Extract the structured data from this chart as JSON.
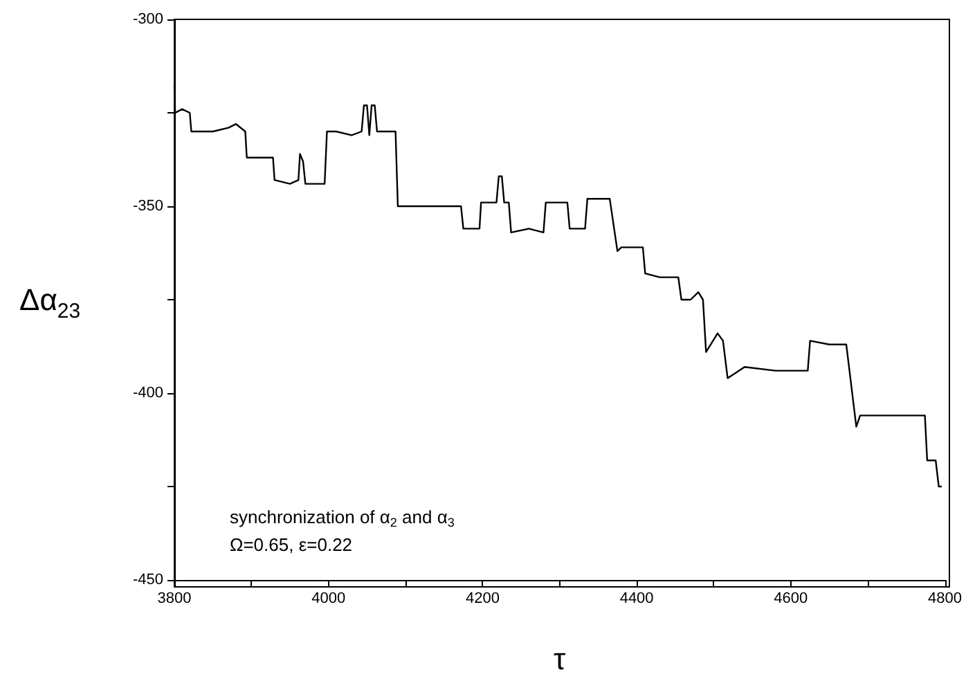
{
  "chart_data": {
    "type": "line",
    "xlabel": "τ",
    "ylabel": "Δα$_{23}$",
    "annotations": [
      "synchronization of α$_{2}$ and α$_{3}$",
      "Ω=0.65, ε=0.22"
    ],
    "xlim": [
      3800,
      4800
    ],
    "xticks": [
      3800,
      4000,
      4200,
      4400,
      4600,
      4800
    ],
    "ylim": [
      -450,
      -300
    ],
    "yticks": [
      -450,
      -400,
      -350,
      -300
    ],
    "grid": false,
    "marker": "none",
    "line_style": "solid",
    "series": [
      {
        "color": "#000000",
        "x": [
          3800,
          3801,
          3810,
          3820,
          3822,
          3850,
          3870,
          3880,
          3892,
          3894,
          3910,
          3928,
          3930,
          3950,
          3961,
          3963,
          3967,
          3970,
          3985,
          3995,
          3998,
          4010,
          4030,
          4043,
          4046,
          4050,
          4053,
          4056,
          4060,
          4063,
          4070,
          4087,
          4090,
          4100,
          4130,
          4172,
          4175,
          4190,
          4196,
          4198,
          4210,
          4218,
          4221,
          4225,
          4228,
          4234,
          4237,
          4260,
          4279,
          4282,
          4300,
          4310,
          4313,
          4325,
          4333,
          4336,
          4350,
          4365,
          4375,
          4380,
          4395,
          4408,
          4411,
          4430,
          4454,
          4458,
          4470,
          4480,
          4486,
          4490,
          4505,
          4512,
          4518,
          4540,
          4580,
          4622,
          4625,
          4650,
          4672,
          4685,
          4690,
          4720,
          4760,
          4774,
          4777,
          4788,
          4792,
          4795
        ],
        "values": [
          -318,
          -325,
          -324,
          -325,
          -330,
          -330,
          -329,
          -328,
          -330,
          -337,
          -337,
          -337,
          -343,
          -344,
          -343,
          -336,
          -338,
          -344,
          -344,
          -344,
          -330,
          -330,
          -331,
          -330,
          -323,
          -323,
          -331,
          -323,
          -323,
          -330,
          -330,
          -330,
          -350,
          -350,
          -350,
          -350,
          -356,
          -356,
          -356,
          -349,
          -349,
          -349,
          -342,
          -342,
          -349,
          -349,
          -357,
          -356,
          -357,
          -349,
          -349,
          -349,
          -356,
          -356,
          -356,
          -348,
          -348,
          -348,
          -362,
          -361,
          -361,
          -361,
          -368,
          -369,
          -369,
          -375,
          -375,
          -373,
          -375,
          -389,
          -384,
          -386,
          -396,
          -393,
          -394,
          -394,
          -386,
          -387,
          -387,
          -409,
          -406,
          -406,
          -406,
          -406,
          -418,
          -418,
          -425,
          -425
        ]
      }
    ]
  }
}
